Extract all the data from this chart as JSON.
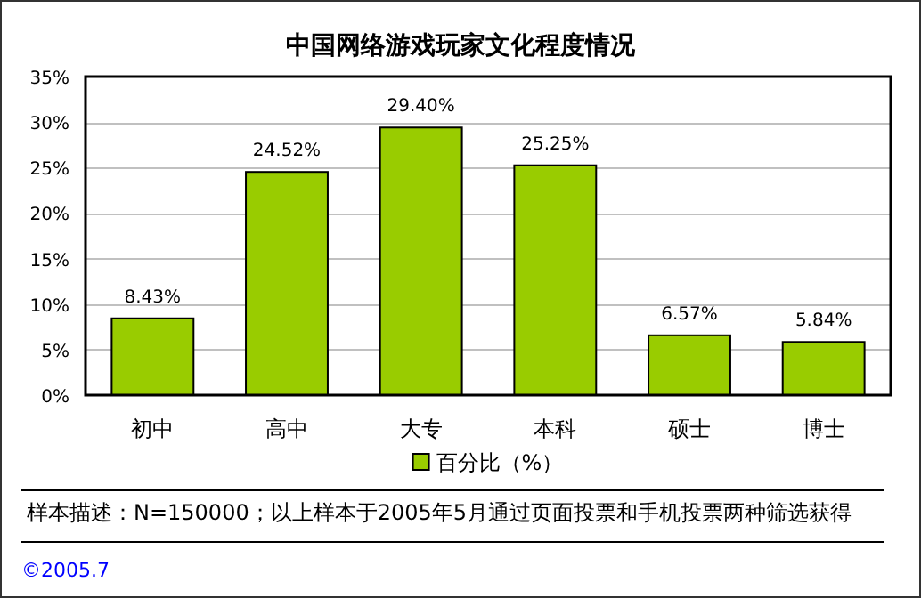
{
  "chart_data": {
    "type": "bar",
    "title": "中国网络游戏玩家文化程度情况",
    "categories": [
      "初中",
      "高中",
      "大专",
      "本科",
      "硕士",
      "博士"
    ],
    "series": [
      {
        "name": "百分比（%）",
        "color": "#99cc00",
        "values": [
          8.43,
          24.52,
          29.4,
          25.25,
          6.57,
          5.84
        ],
        "value_labels": [
          "8.43%",
          "24.52%",
          "29.40%",
          "25.25%",
          "6.57%",
          "5.84%"
        ]
      }
    ],
    "ylim": [
      0,
      35
    ],
    "yticks": [
      {
        "value": 0,
        "label": "0%"
      },
      {
        "value": 5,
        "label": "5%"
      },
      {
        "value": 10,
        "label": "10%"
      },
      {
        "value": 15,
        "label": "15%"
      },
      {
        "value": 20,
        "label": "20%"
      },
      {
        "value": 25,
        "label": "25%"
      },
      {
        "value": 30,
        "label": "30%"
      },
      {
        "value": 35,
        "label": "35%"
      }
    ],
    "grid": "y",
    "legend": "bottom",
    "annotations": [
      "样本描述：N=150000；以上样本于2005年5月通过页面投票和手机投票两种筛选获得",
      "©2005.7"
    ]
  }
}
